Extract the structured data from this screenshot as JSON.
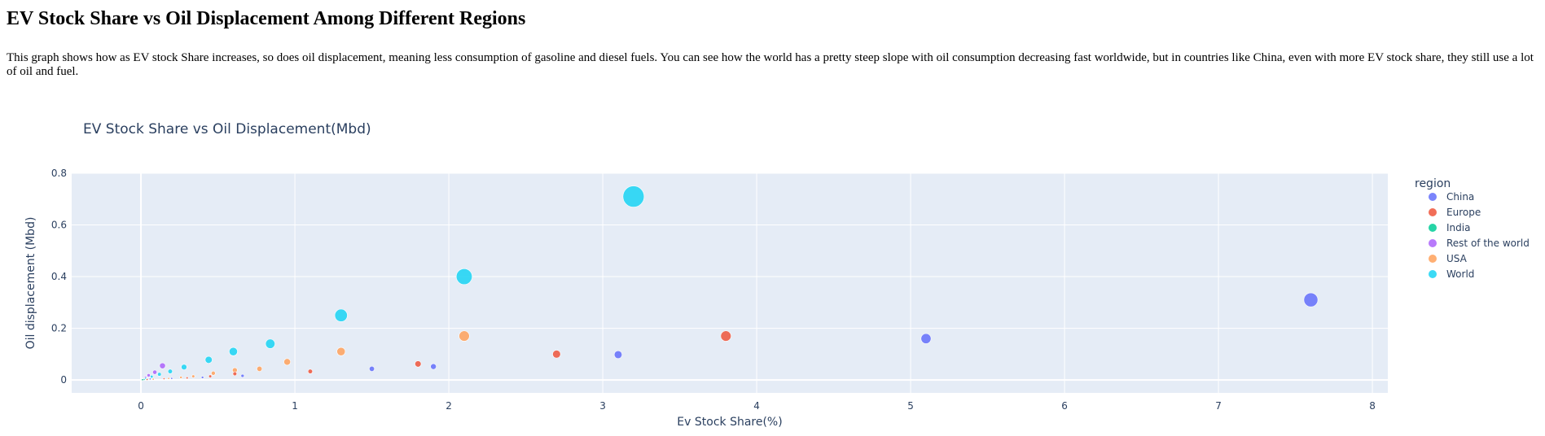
{
  "page": {
    "heading": "EV Stock Share vs Oil Displacement Among Different Regions",
    "description": "This graph shows how as EV stock Share increases, so does oil displacement, meaning less consumption of gasoline and diesel fuels. You can see how the world has a pretty steep slope with oil consumption decreasing fast worldwide, but in countries like China, even with more EV stock share, they still use a lot of oil and fuel."
  },
  "chart_data": {
    "type": "scatter",
    "title": "EV Stock Share vs Oil Displacement(Mbd)",
    "xlabel": "Ev Stock Share(%)",
    "ylabel": "Oil displacement (Mbd)",
    "xlim": [
      -0.45,
      8.1
    ],
    "ylim": [
      -0.05,
      0.8
    ],
    "x_ticks": [
      0,
      1,
      2,
      3,
      4,
      5,
      6,
      7,
      8
    ],
    "y_ticks": [
      0,
      0.2,
      0.4,
      0.6,
      0.8
    ],
    "grid": true,
    "bubble_size_by": "y",
    "legend_title": "region",
    "legend_position": "right",
    "colors": {
      "plot_background": "#e5ecf6",
      "grid": "#ffffff",
      "axis_text": "#2a3f5f"
    },
    "series": [
      {
        "name": "China",
        "color": "#636efa",
        "x": [
          0.02,
          0.06,
          0.2,
          0.4,
          0.66,
          1.5,
          1.9,
          3.1,
          5.1,
          7.6
        ],
        "y": [
          0.002,
          0.004,
          0.006,
          0.01,
          0.016,
          0.043,
          0.052,
          0.098,
          0.16,
          0.31
        ]
      },
      {
        "name": "Europe",
        "color": "#ef553b",
        "x": [
          0.01,
          0.04,
          0.15,
          0.3,
          0.45,
          0.61,
          1.1,
          1.8,
          2.7,
          3.8
        ],
        "y": [
          0.001,
          0.002,
          0.005,
          0.008,
          0.014,
          0.024,
          0.033,
          0.062,
          0.1,
          0.17
        ]
      },
      {
        "name": "India",
        "color": "#00cc96",
        "x": [
          0.01,
          0.02,
          0.04
        ],
        "y": [
          0.001,
          0.002,
          0.004
        ]
      },
      {
        "name": "Rest of the world",
        "color": "#ab63fa",
        "x": [
          0.01,
          0.03,
          0.05,
          0.09,
          0.14
        ],
        "y": [
          0.004,
          0.01,
          0.018,
          0.03,
          0.055
        ]
      },
      {
        "name": "USA",
        "color": "#ffa15a",
        "x": [
          0.08,
          0.18,
          0.26,
          0.34,
          0.47,
          0.61,
          0.77,
          0.95,
          1.3,
          2.1
        ],
        "y": [
          0.003,
          0.006,
          0.01,
          0.014,
          0.026,
          0.038,
          0.043,
          0.07,
          0.11,
          0.17
        ]
      },
      {
        "name": "World",
        "color": "#19d3f3",
        "x": [
          0.01,
          0.03,
          0.07,
          0.12,
          0.19,
          0.28,
          0.44,
          0.6,
          0.84,
          1.3,
          2.1,
          3.2
        ],
        "y": [
          0.002,
          0.006,
          0.013,
          0.022,
          0.033,
          0.05,
          0.078,
          0.11,
          0.14,
          0.25,
          0.4,
          0.71
        ]
      }
    ]
  }
}
